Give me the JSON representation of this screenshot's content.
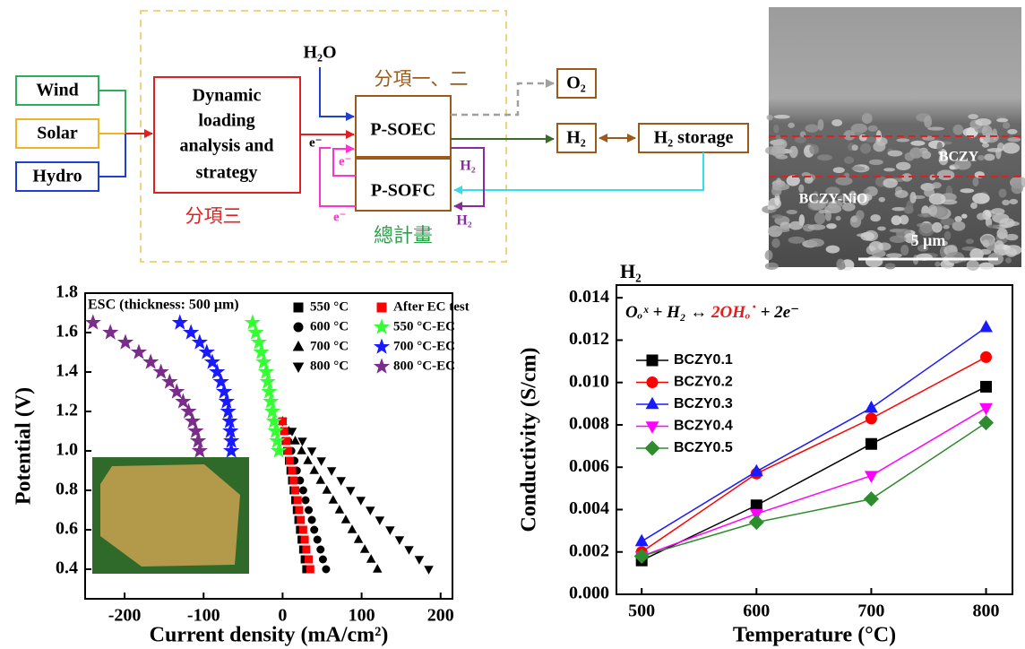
{
  "diagram": {
    "sources": [
      "Wind",
      "Solar",
      "Hydro"
    ],
    "controller": [
      "Dynamic",
      "loading",
      "analysis and",
      "strategy"
    ],
    "subproject_3": "分項三",
    "water": "H₂O",
    "subproject_1_2": "分項一、二",
    "soec": "P-SOEC",
    "sofc": "P-SOFC",
    "oxygen": "O₂",
    "hydrogen": "H₂",
    "storage": "H₂ storage",
    "electron_labels": [
      "e⁻",
      "e⁻",
      "e⁻"
    ],
    "hydrogen_labels": [
      "H₂",
      "H₂"
    ],
    "main_project": "總計畫"
  },
  "micrograph": {
    "layers": [
      "BCZY",
      "BCZY-NiO"
    ],
    "scale": "5 μm"
  },
  "chart_data": [
    {
      "type": "scatter",
      "annotation": "ESC (thickness: 500 μm)",
      "x_label": "Current density (mA/cm²)",
      "y_label": "Potential (V)",
      "xlim": [
        -250,
        215
      ],
      "ylim": [
        0.25,
        1.8
      ],
      "xticks": [
        -200,
        -100,
        0,
        100,
        200
      ],
      "yticks": [
        0.4,
        0.6,
        0.8,
        {
          "value": 1.0,
          "label": "1.0"
        },
        1.2,
        1.4,
        1.6,
        1.8
      ],
      "series": [
        {
          "name": "550 °C",
          "color": "#000000",
          "marker": "square",
          "x": [
            0,
            2,
            4,
            6,
            8,
            10,
            12,
            14,
            16,
            18,
            20,
            22,
            24,
            26,
            28,
            30
          ],
          "values": [
            1.15,
            1.1,
            1.05,
            1.0,
            0.95,
            0.9,
            0.85,
            0.8,
            0.75,
            0.7,
            0.65,
            0.6,
            0.55,
            0.5,
            0.45,
            0.4
          ]
        },
        {
          "name": "600 °C",
          "color": "#000000",
          "marker": "circle",
          "x": [
            0,
            4,
            7,
            11,
            15,
            18,
            22,
            26,
            29,
            33,
            37,
            40,
            44,
            48,
            51,
            55
          ],
          "values": [
            1.15,
            1.1,
            1.05,
            1.0,
            0.95,
            0.9,
            0.85,
            0.8,
            0.75,
            0.7,
            0.65,
            0.6,
            0.55,
            0.5,
            0.45,
            0.4
          ]
        },
        {
          "name": "700 °C",
          "color": "#000000",
          "marker": "triangle-up",
          "x": [
            0,
            8,
            16,
            24,
            32,
            40,
            48,
            56,
            64,
            72,
            80,
            88,
            96,
            104,
            112,
            120
          ],
          "values": [
            1.15,
            1.1,
            1.05,
            1.0,
            0.95,
            0.9,
            0.85,
            0.8,
            0.75,
            0.7,
            0.65,
            0.6,
            0.55,
            0.5,
            0.45,
            0.4
          ]
        },
        {
          "name": "800 °C",
          "color": "#000000",
          "marker": "triangle-down",
          "x": [
            0,
            12,
            25,
            37,
            49,
            62,
            74,
            86,
            99,
            111,
            123,
            136,
            148,
            160,
            173,
            185
          ],
          "values": [
            1.15,
            1.1,
            1.05,
            1.0,
            0.95,
            0.9,
            0.85,
            0.8,
            0.75,
            0.7,
            0.65,
            0.6,
            0.55,
            0.5,
            0.45,
            0.4
          ]
        },
        {
          "name": "After EC test",
          "color": "#ff0000",
          "marker": "square",
          "x": [
            0,
            2,
            5,
            7,
            9,
            12,
            14,
            16,
            19,
            21,
            23,
            26,
            28,
            30,
            33,
            35
          ],
          "values": [
            1.15,
            1.1,
            1.05,
            1.0,
            0.95,
            0.9,
            0.85,
            0.8,
            0.75,
            0.7,
            0.65,
            0.6,
            0.55,
            0.5,
            0.45,
            0.4
          ]
        },
        {
          "name": "550 °C-EC",
          "color": "#33ff33",
          "marker": "star",
          "x": [
            -5,
            -7,
            -9,
            -11,
            -13,
            -15,
            -17,
            -19,
            -21,
            -24,
            -27,
            -30,
            -34,
            -38
          ],
          "values": [
            1.0,
            1.05,
            1.1,
            1.15,
            1.2,
            1.25,
            1.3,
            1.35,
            1.4,
            1.45,
            1.5,
            1.55,
            1.6,
            1.65
          ]
        },
        {
          "name": "700 °C-EC",
          "color": "#1a1aff",
          "marker": "star",
          "x": [
            -65,
            -65,
            -66,
            -67,
            -69,
            -71,
            -74,
            -78,
            -83,
            -89,
            -96,
            -105,
            -116,
            -130
          ],
          "values": [
            1.0,
            1.05,
            1.1,
            1.15,
            1.2,
            1.25,
            1.3,
            1.35,
            1.4,
            1.45,
            1.5,
            1.55,
            1.6,
            1.65
          ]
        },
        {
          "name": "800 °C-EC",
          "color": "#7b2d8b",
          "marker": "star",
          "x": [
            -105,
            -107,
            -110,
            -114,
            -119,
            -126,
            -134,
            -143,
            -154,
            -167,
            -182,
            -199,
            -218,
            -240
          ],
          "values": [
            1.0,
            1.05,
            1.1,
            1.15,
            1.2,
            1.25,
            1.3,
            1.35,
            1.4,
            1.45,
            1.5,
            1.55,
            1.6,
            1.65
          ]
        }
      ]
    },
    {
      "type": "line",
      "title": "H₂",
      "annotation": [
        "Oₒˣ + H₂ ↔ ",
        "2OHₒ˙",
        " + 2e⁻"
      ],
      "x_label": "Temperature (°C)",
      "y_label": "Conductivity (S/cm)",
      "x": [
        500,
        600,
        700,
        800
      ],
      "xlim": [
        478,
        823
      ],
      "ylim": [
        0,
        0.0146
      ],
      "xticks": [
        500,
        600,
        700,
        800
      ],
      "yticks": [
        {
          "value": 0,
          "label": "0.000"
        },
        {
          "value": 0.002,
          "label": "0.002"
        },
        {
          "value": 0.004,
          "label": "0.004"
        },
        {
          "value": 0.006,
          "label": "0.006"
        },
        {
          "value": 0.008,
          "label": "0.008"
        },
        {
          "value": 0.01,
          "label": "0.010"
        },
        {
          "value": 0.012,
          "label": "0.012"
        },
        {
          "value": 0.014,
          "label": "0.014"
        }
      ],
      "series": [
        {
          "name": "BCZY0.1",
          "color": "#000000",
          "marker": "square",
          "values": [
            0.0016,
            0.0042,
            0.0071,
            0.0098
          ]
        },
        {
          "name": "BCZY0.2",
          "color": "#ff0000",
          "marker": "circle",
          "values": [
            0.002,
            0.0057,
            0.0083,
            0.0112
          ]
        },
        {
          "name": "BCZY0.3",
          "color": "#1a1aff",
          "marker": "triangle-up",
          "values": [
            0.0025,
            0.0058,
            0.0088,
            0.0126
          ]
        },
        {
          "name": "BCZY0.4",
          "color": "#ff00ff",
          "marker": "triangle-down",
          "values": [
            0.0018,
            0.0038,
            0.0056,
            0.0088
          ]
        },
        {
          "name": "BCZY0.5",
          "color": "#2e8b2e",
          "marker": "diamond",
          "values": [
            0.0018,
            0.0034,
            0.0045,
            0.0081
          ]
        }
      ]
    }
  ]
}
